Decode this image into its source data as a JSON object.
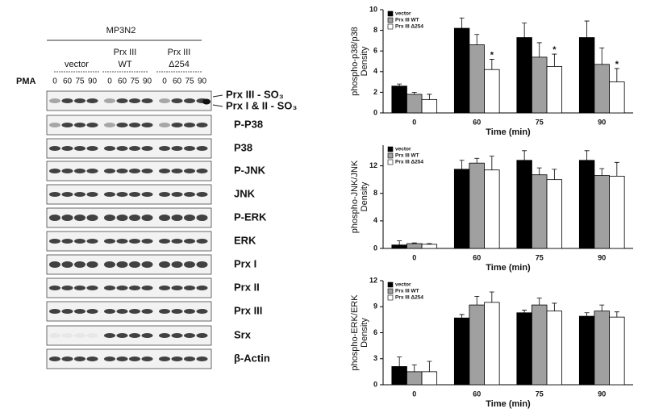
{
  "blot": {
    "cell_line": "MP3N2",
    "groups": [
      [
        "vector"
      ],
      [
        "Prx III",
        "WT"
      ],
      [
        "Prx III",
        "Δ254"
      ]
    ],
    "treatment": "PMA",
    "lanes": [
      "0",
      "60",
      "75",
      "90",
      "0",
      "60",
      "75",
      "90",
      "0",
      "60",
      "75",
      "90"
    ],
    "rows": [
      "Prx III - SO₃",
      "Prx I & II - SO₃",
      "P-P38",
      "P38",
      "P-JNK",
      "JNK",
      "P-ERK",
      "ERK",
      "Prx I",
      "Prx II",
      "Prx III",
      "Srx",
      "β-Actin"
    ]
  },
  "chart_data": [
    {
      "type": "bar",
      "ylabel": [
        "phospho-p38/p38",
        "Density"
      ],
      "xlabel": "Time (min)",
      "categories": [
        "0",
        "60",
        "75",
        "90"
      ],
      "ylim": [
        0,
        10
      ],
      "yticks": [
        0,
        2,
        4,
        6,
        8,
        10
      ],
      "legend": "upper left",
      "series": [
        {
          "name": "vector",
          "color": "#000000",
          "values": [
            2.6,
            8.2,
            7.3,
            7.3
          ],
          "errors": [
            0.2,
            1.0,
            1.4,
            1.6
          ]
        },
        {
          "name": "Prx III WT",
          "color": "#a0a0a0",
          "values": [
            1.8,
            6.6,
            5.4,
            4.7
          ],
          "errors": [
            0.2,
            1.0,
            1.4,
            1.6
          ]
        },
        {
          "name": "Prx III Δ254",
          "color": "#ffffff",
          "values": [
            1.3,
            4.2,
            4.5,
            3.0
          ],
          "errors": [
            0.5,
            1.0,
            1.2,
            1.3
          ],
          "markers": [
            null,
            "*",
            "*",
            "*"
          ]
        }
      ]
    },
    {
      "type": "bar",
      "ylabel": [
        "phospho-JNK/JNK",
        "Density"
      ],
      "xlabel": "Time (min)",
      "categories": [
        "0",
        "60",
        "75",
        "90"
      ],
      "ylim": [
        0,
        15
      ],
      "yticks": [
        0,
        4,
        8,
        12
      ],
      "legend": "upper left",
      "series": [
        {
          "name": "vector",
          "color": "#000000",
          "values": [
            0.5,
            11.5,
            12.8,
            12.8
          ],
          "errors": [
            0.6,
            1.3,
            1.4,
            1.4
          ]
        },
        {
          "name": "Prx III WT",
          "color": "#a0a0a0",
          "values": [
            0.7,
            12.4,
            10.7,
            10.6
          ],
          "errors": [
            0.1,
            0.7,
            1.0,
            1.0
          ]
        },
        {
          "name": "Prx III Δ254",
          "color": "#ffffff",
          "values": [
            0.6,
            11.4,
            10.0,
            10.5
          ],
          "errors": [
            0.1,
            2.0,
            1.5,
            2.0
          ]
        }
      ]
    },
    {
      "type": "bar",
      "ylabel": [
        "phospho-ERK/ERK",
        "Density"
      ],
      "xlabel": "Time (min)",
      "categories": [
        "0",
        "60",
        "75",
        "90"
      ],
      "ylim": [
        0,
        12
      ],
      "yticks": [
        0,
        3,
        6,
        9,
        12
      ],
      "legend": "upper left",
      "series": [
        {
          "name": "vector",
          "color": "#000000",
          "values": [
            2.1,
            7.7,
            8.3,
            7.9
          ],
          "errors": [
            1.1,
            0.4,
            0.3,
            0.4
          ]
        },
        {
          "name": "Prx III WT",
          "color": "#a0a0a0",
          "values": [
            1.5,
            9.2,
            9.2,
            8.5
          ],
          "errors": [
            0.8,
            1.0,
            0.8,
            0.7
          ]
        },
        {
          "name": "Prx III Δ254",
          "color": "#ffffff",
          "values": [
            1.5,
            9.5,
            8.5,
            7.8
          ],
          "errors": [
            1.2,
            1.2,
            0.9,
            0.6
          ]
        }
      ]
    }
  ]
}
